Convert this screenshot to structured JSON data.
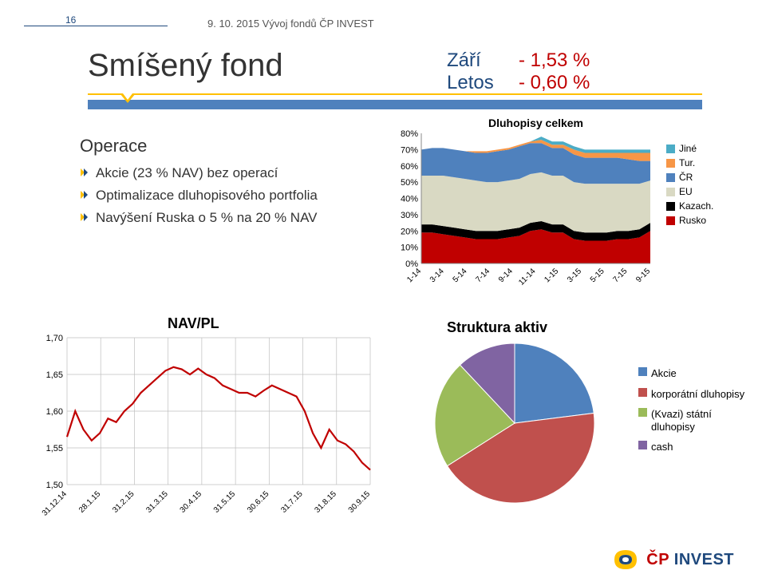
{
  "page_number": "16",
  "header_date": "9. 10. 2015  Vývoj fondů ČP INVEST",
  "title": "Smíšený fond",
  "perf": {
    "row1_label": "Září",
    "row1_value": "- 1,53 %",
    "row2_label": "Letos",
    "row2_value": "- 0,60 %"
  },
  "ops": {
    "title": "Operace",
    "items": [
      "Akcie (23 % NAV) bez operací",
      "Optimalizace dluhopisového portfolia",
      "Navýšení Ruska o 5 % na 20 % NAV"
    ]
  },
  "area_chart": {
    "type": "stacked-area",
    "title": "Dluhopisy celkem",
    "title_fontsize": 14,
    "y_ticks": [
      0,
      10,
      20,
      30,
      40,
      50,
      60,
      70,
      80
    ],
    "y_tick_labels": [
      "0%",
      "10%",
      "20%",
      "30%",
      "40%",
      "50%",
      "60%",
      "70%",
      "80%"
    ],
    "x_labels": [
      "1-14",
      "3-14",
      "5-14",
      "7-14",
      "9-14",
      "11-14",
      "1-15",
      "3-15",
      "5-15",
      "7-15",
      "9-15"
    ],
    "series": [
      {
        "name": "Rusko",
        "color": "#c00000",
        "values": [
          19,
          19,
          18,
          17,
          16,
          15,
          15,
          15,
          16,
          17,
          20,
          21,
          19,
          19,
          15,
          14,
          14,
          14,
          15,
          15,
          16,
          20
        ]
      },
      {
        "name": "Kazach.",
        "color": "#000000",
        "values": [
          5,
          5,
          5,
          5,
          5,
          5,
          5,
          5,
          5,
          5,
          5,
          5,
          5,
          5,
          5,
          5,
          5,
          5,
          5,
          5,
          5,
          5
        ]
      },
      {
        "name": "EU",
        "color": "#d9d9c3",
        "values": [
          30,
          30,
          31,
          31,
          31,
          31,
          30,
          30,
          30,
          30,
          30,
          30,
          30,
          30,
          30,
          30,
          30,
          30,
          29,
          29,
          28,
          26
        ]
      },
      {
        "name": "ČR",
        "color": "#4f81bd",
        "values": [
          16,
          17,
          17,
          17,
          17,
          17,
          18,
          19,
          19,
          20,
          19,
          18,
          17,
          17,
          17,
          16,
          16,
          16,
          16,
          15,
          14,
          12
        ]
      },
      {
        "name": "Tur.",
        "color": "#f79646",
        "values": [
          0,
          0,
          0,
          0,
          0,
          1,
          1,
          1,
          1,
          1,
          1,
          2,
          2,
          2,
          3,
          3,
          3,
          3,
          3,
          4,
          5,
          5
        ]
      },
      {
        "name": "Jiné",
        "color": "#4bacc6",
        "values": [
          0,
          0,
          0,
          0,
          0,
          0,
          0,
          0,
          0,
          0,
          0,
          2,
          2,
          2,
          2,
          2,
          2,
          2,
          2,
          2,
          2,
          2
        ]
      }
    ],
    "label_fontsize": 11,
    "background_color": "#ffffff"
  },
  "navpl_chart": {
    "type": "line",
    "title": "NAV/PL",
    "line_color": "#c00000",
    "line_width": 2.2,
    "ylim": [
      1.5,
      1.7
    ],
    "y_ticks": [
      1.5,
      1.55,
      1.6,
      1.65,
      1.7
    ],
    "y_tick_labels": [
      "1,50",
      "1,55",
      "1,60",
      "1,65",
      "1,70"
    ],
    "x_labels": [
      "31.12.14",
      "28.1.15",
      "31.2.15",
      "31.3.15",
      "30.4.15",
      "31.5.15",
      "30.6.15",
      "31.7.15",
      "31.8.15",
      "30.9.15"
    ],
    "values": [
      1.565,
      1.6,
      1.575,
      1.56,
      1.57,
      1.59,
      1.585,
      1.6,
      1.61,
      1.625,
      1.635,
      1.645,
      1.655,
      1.66,
      1.657,
      1.65,
      1.658,
      1.65,
      1.645,
      1.635,
      1.63,
      1.625,
      1.625,
      1.62,
      1.628,
      1.635,
      1.63,
      1.625,
      1.62,
      1.6,
      1.57,
      1.55,
      1.575,
      1.56,
      1.555,
      1.545,
      1.53,
      1.52
    ],
    "grid_color": "#bfbfbf",
    "label_fontsize": 11
  },
  "pie_chart": {
    "type": "pie",
    "title": "Struktura aktiv",
    "slices": [
      {
        "name": "Akcie",
        "color": "#4f81bd",
        "value": 23
      },
      {
        "name": "korporátní dluhopisy",
        "color": "#c0504d",
        "value": 43
      },
      {
        "name": "(Kvazi) státní dluhopisy",
        "color": "#9bbb59",
        "value": 22
      },
      {
        "name": "cash",
        "color": "#8064a2",
        "value": 12
      }
    ]
  },
  "logo": {
    "cp": "ČP",
    "inv": " INVEST"
  }
}
